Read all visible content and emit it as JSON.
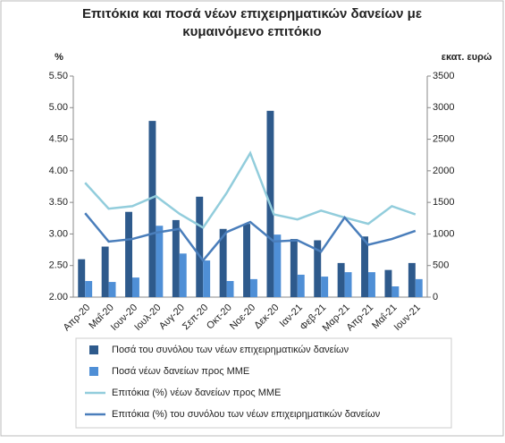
{
  "chart_data": {
    "type": "bar_line",
    "title": [
      "Επιτόκια και ποσά νέων επιχειρηματικών δανείων με",
      "κυμαινόμενο επιτόκιο"
    ],
    "y_label": "%",
    "y2_label": "εκατ. ευρώ",
    "categories": [
      "Απρ-20",
      "Μαΐ-20",
      "Ιουν-20",
      "Ιουλ-20",
      "Αυγ-20",
      "Σεπ-20",
      "Οκτ-20",
      "Νοε-20",
      "Δεκ-20",
      "Ιαν-21",
      "Φεβ-21",
      "Μαρ-21",
      "Απρ-21",
      "Μαΐ-21",
      "Ιουν-21"
    ],
    "series": [
      {
        "name": "Ποσά του συνόλου των νέων επιχειρηματικών δανείων",
        "kind": "bar",
        "axis": "y2",
        "color": "#2e5a8c",
        "values": [
          600,
          800,
          1350,
          2790,
          1220,
          1590,
          1080,
          1160,
          2950,
          920,
          900,
          540,
          960,
          430,
          540
        ]
      },
      {
        "name": "Ποσά νέων δανείων προς ΜΜΕ",
        "kind": "bar",
        "axis": "y2",
        "color": "#4f8fd6",
        "values": [
          255,
          240,
          310,
          1130,
          690,
          580,
          255,
          285,
          990,
          355,
          325,
          395,
          395,
          170,
          285
        ]
      },
      {
        "name": "Επιτόκια (%) νέων δανείων προς ΜΜΕ",
        "kind": "line",
        "axis": "y",
        "color": "#92cddc",
        "values": [
          3.81,
          3.4,
          3.44,
          3.6,
          3.32,
          3.1,
          3.65,
          4.28,
          3.31,
          3.23,
          3.37,
          3.26,
          3.16,
          3.44,
          3.31
        ]
      },
      {
        "name": "Επιτόκια (%) του συνόλου των νέων επιχειρηματικών δανείων",
        "kind": "line",
        "axis": "y",
        "color": "#4a7ebb",
        "values": [
          3.33,
          2.88,
          2.92,
          3.02,
          3.08,
          2.58,
          3.03,
          3.19,
          2.88,
          2.9,
          2.72,
          3.26,
          2.83,
          2.92,
          3.05
        ]
      }
    ],
    "ylim": [
      2,
      5.5
    ],
    "yticks": [
      {
        "value": 2,
        "label": "2.00"
      },
      {
        "value": 2.5,
        "label": "2.50"
      },
      {
        "value": 3,
        "label": "3.00"
      },
      {
        "value": 3.5,
        "label": "3.50"
      },
      {
        "value": 4,
        "label": "4.00"
      },
      {
        "value": 4.5,
        "label": "4.50"
      },
      {
        "value": 5,
        "label": "5.00"
      },
      {
        "value": 5.5,
        "label": "5.50"
      }
    ],
    "y2lim": [
      0,
      3500
    ],
    "y2ticks": [
      0,
      500,
      1000,
      1500,
      2000,
      2500,
      3000,
      3500
    ]
  }
}
